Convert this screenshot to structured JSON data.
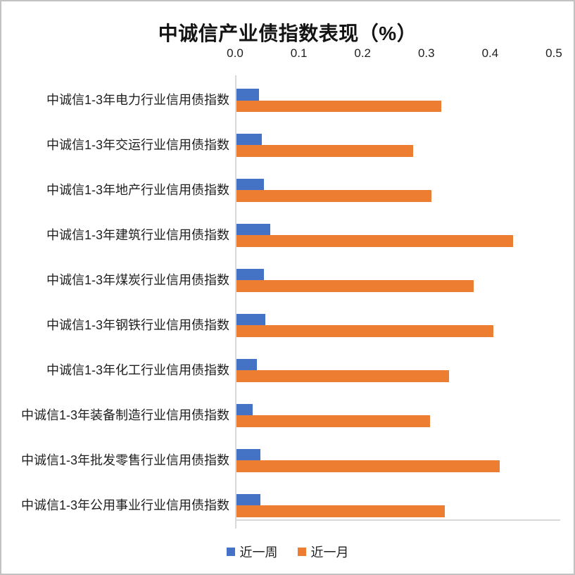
{
  "page": {
    "background": "#FFFFFF",
    "frame_border_color": "#C2C2C2"
  },
  "chart_data": {
    "type": "bar",
    "orientation": "horizontal",
    "title": "中诚信产业债指数表现（%）",
    "categories": [
      "中诚信1-3年电力行业信用债指数",
      "中诚信1-3年交运行业信用债指数",
      "中诚信1-3年地产行业信用债指数",
      "中诚信1-3年建筑行业信用债指数",
      "中诚信1-3年煤炭行业信用债指数",
      "中诚信1-3年钢铁行业信用债指数",
      "中诚信1-3年化工行业信用债指数",
      "中诚信1-3年装备制造行业信用债指数",
      "中诚信1-3年批发零售行业信用债指数",
      "中诚信1-3年公用事业行业信用债指数"
    ],
    "series": [
      {
        "name": "近一周",
        "color": "#4472C4",
        "values": [
          0.035,
          0.04,
          0.043,
          0.053,
          0.043,
          0.045,
          0.032,
          0.025,
          0.038,
          0.038
        ]
      },
      {
        "name": "近一月",
        "color": "#ED7D31",
        "values": [
          0.321,
          0.277,
          0.306,
          0.434,
          0.372,
          0.403,
          0.333,
          0.303,
          0.413,
          0.327
        ]
      }
    ],
    "x_axis": {
      "position": "top",
      "min": 0.0,
      "max": 0.5,
      "tick_labels": [
        "0.0",
        "0.1",
        "0.2",
        "0.3",
        "0.4",
        "0.5"
      ],
      "axis_line_color": "#D9D9D9"
    },
    "legend": {
      "position": "bottom",
      "entries": [
        "近一周",
        "近一月"
      ]
    },
    "grid": false
  }
}
